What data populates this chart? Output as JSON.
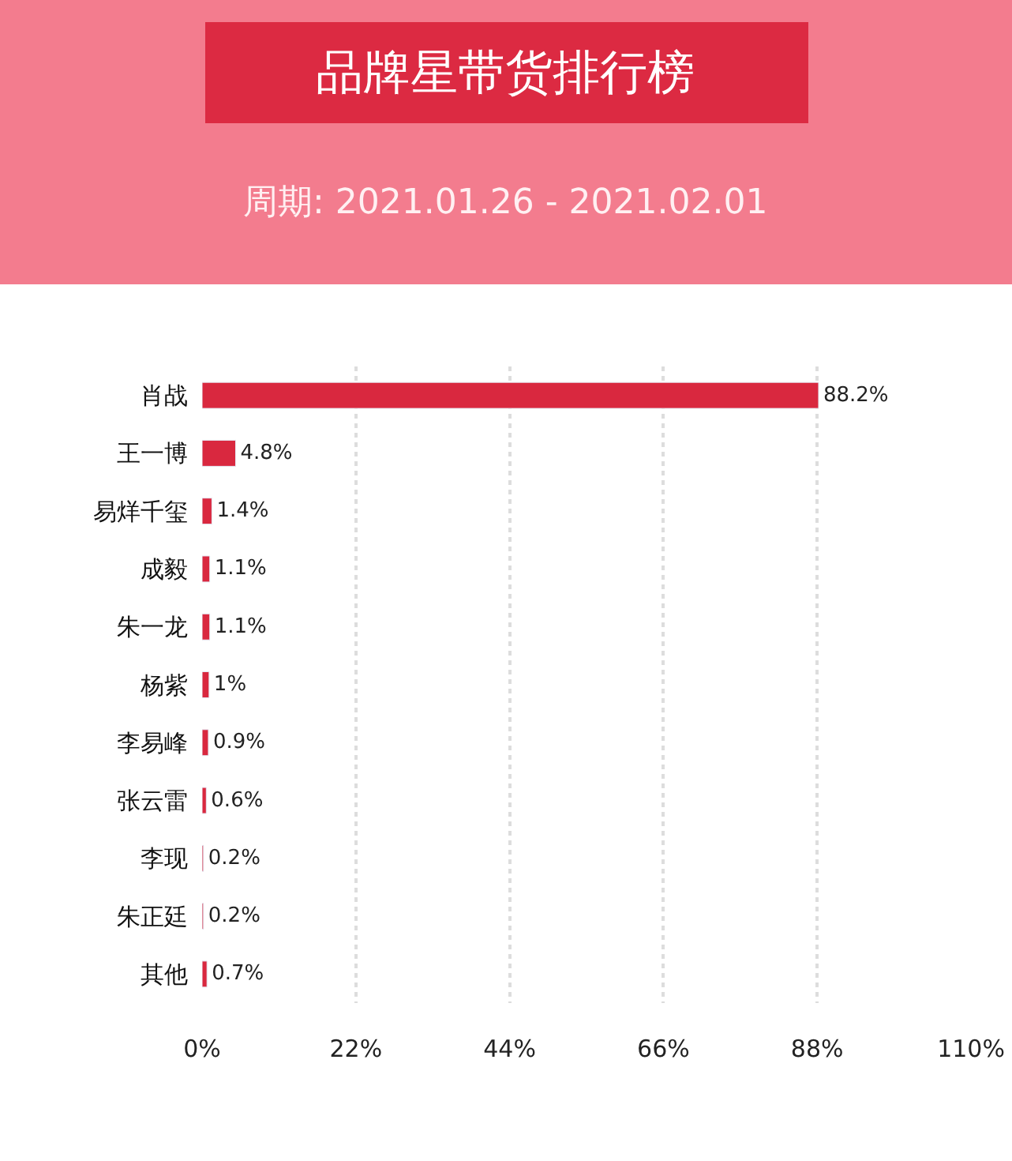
{
  "chart_data": {
    "type": "bar",
    "orientation": "horizontal",
    "title": "品牌星带货排行榜",
    "subtitle": "周期: 2021.01.26 - 2021.02.01",
    "categories": [
      "肖战",
      "王一博",
      "易烊千玺",
      "成毅",
      "朱一龙",
      "杨紫",
      "李易峰",
      "张云雷",
      "李现",
      "朱正廷",
      "其他"
    ],
    "values": [
      88.2,
      4.8,
      1.4,
      1.1,
      1.1,
      1,
      0.9,
      0.6,
      0.2,
      0.2,
      0.7
    ],
    "value_labels": [
      "88.2%",
      "4.8%",
      "1.4%",
      "1.1%",
      "1.1%",
      "1%",
      "0.9%",
      "0.6%",
      "0.2%",
      "0.2%",
      "0.7%"
    ],
    "color": "#d9283f",
    "xlim": [
      0,
      110
    ],
    "xticks": [
      {
        "value": 0,
        "label": "0%"
      },
      {
        "value": 22,
        "label": "22%"
      },
      {
        "value": 44,
        "label": "44%"
      },
      {
        "value": 66,
        "label": "66%"
      },
      {
        "value": 88,
        "label": "88%"
      },
      {
        "value": 110,
        "label": "110%"
      }
    ],
    "grid": "x"
  }
}
